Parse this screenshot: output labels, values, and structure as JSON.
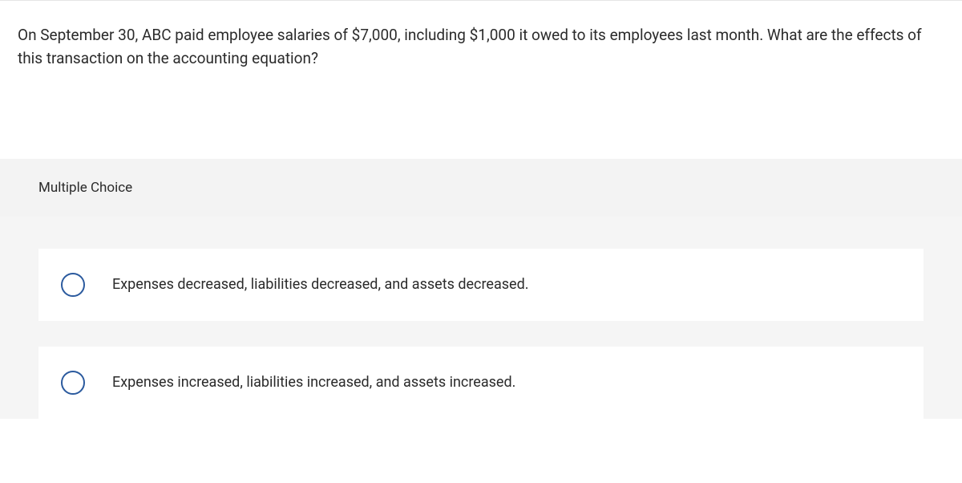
{
  "question": {
    "text": "On September 30, ABC paid employee salaries of $7,000, including $1,000 it owed to its employees last month. What are the effects of this transaction on the accounting equation?"
  },
  "section": {
    "label": "Multiple Choice"
  },
  "options": [
    {
      "text": "Expenses decreased, liabilities decreased, and assets decreased."
    },
    {
      "text": "Expenses increased, liabilities increased, and assets increased."
    }
  ],
  "styles": {
    "radio_border_color": "#2b5a9e",
    "text_color": "#2b2b2b",
    "option_bg": "#ffffff",
    "section_bg": "#f5f5f5",
    "header_bg": "#f3f3f3",
    "question_fontsize": 19,
    "option_fontsize": 18,
    "header_fontsize": 17
  }
}
